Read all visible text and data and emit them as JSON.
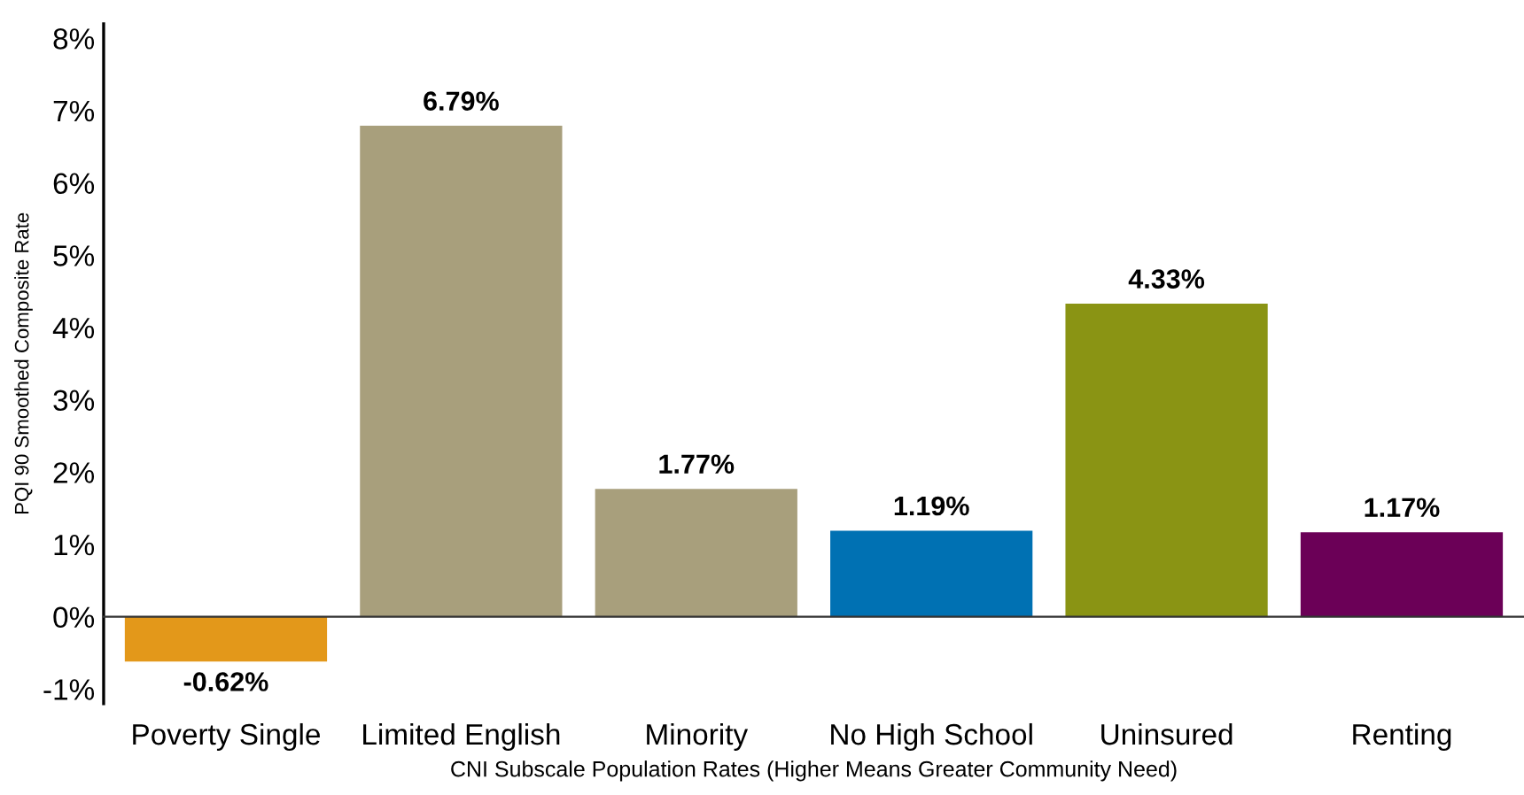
{
  "chart_data": {
    "type": "bar",
    "categories": [
      "Poverty Single",
      "Limited English",
      "Minority",
      "No High School",
      "Uninsured",
      "Renting"
    ],
    "values": [
      -0.62,
      6.79,
      1.77,
      1.19,
      4.33,
      1.17
    ],
    "colors": [
      "#e3981a",
      "#a89f7c",
      "#a89f7c",
      "#0071b3",
      "#8a9414",
      "#6b0057"
    ],
    "value_labels": [
      "-0.62%",
      "6.79%",
      "1.77%",
      "1.19%",
      "4.33%",
      "1.17%"
    ],
    "xlabel": "CNI Subscale Population Rates (Higher Means Greater Community Need)",
    "ylabel": "PQI 90 Smoothed Composite Rate",
    "ylim": [
      -1.2,
      8.2
    ],
    "yticks": [
      {
        "value": -1,
        "label": "-1%"
      },
      {
        "value": 0,
        "label": "0%"
      },
      {
        "value": 1,
        "label": "1%"
      },
      {
        "value": 2,
        "label": "2%"
      },
      {
        "value": 3,
        "label": "3%"
      },
      {
        "value": 4,
        "label": "4%"
      },
      {
        "value": 5,
        "label": "5%"
      },
      {
        "value": 6,
        "label": "6%"
      },
      {
        "value": 7,
        "label": "7%"
      },
      {
        "value": 8,
        "label": "8%"
      }
    ]
  }
}
